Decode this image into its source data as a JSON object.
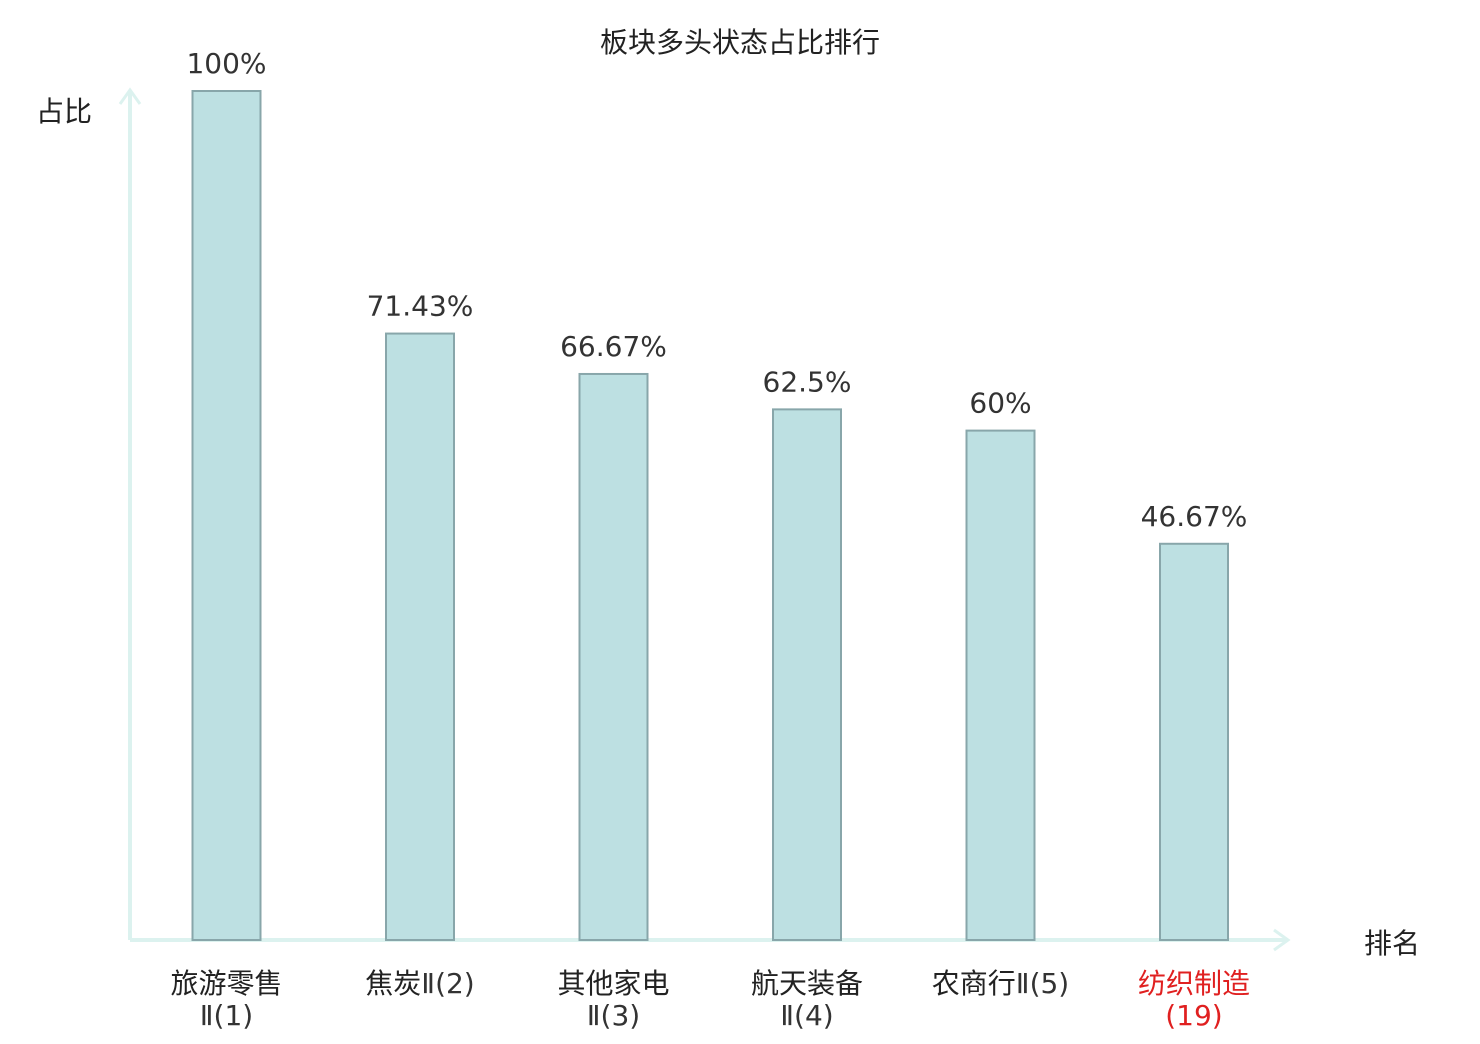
{
  "chart_data": {
    "type": "bar",
    "title": "板块多头状态占比排行",
    "ylabel": "占比",
    "xlabel": "排名",
    "ylim": [
      0,
      100
    ],
    "grid": false,
    "categories": [
      {
        "name": "旅游零售",
        "rank": "Ⅱ(1)",
        "highlight": false
      },
      {
        "name": "焦炭",
        "rank": "Ⅱ(2)",
        "highlight": false
      },
      {
        "name": "其他家电",
        "rank": "Ⅱ(3)",
        "highlight": false
      },
      {
        "name": "航天装备",
        "rank": "Ⅱ(4)",
        "highlight": false
      },
      {
        "name": "农商行",
        "rank": "Ⅱ(5)",
        "highlight": false
      },
      {
        "name": "纺织制造",
        "rank": "(19)",
        "highlight": true
      }
    ],
    "values": [
      100,
      71.43,
      66.67,
      62.5,
      60,
      46.67
    ],
    "value_labels": [
      "100%",
      "71.43%",
      "66.67%",
      "62.5%",
      "60%",
      "46.67%"
    ],
    "colors": {
      "bar_fill": "#bde0e2",
      "bar_stroke": "#88a6aa",
      "axis": "#dcf2ef",
      "label": "#222222",
      "highlight": "#e02020"
    }
  }
}
